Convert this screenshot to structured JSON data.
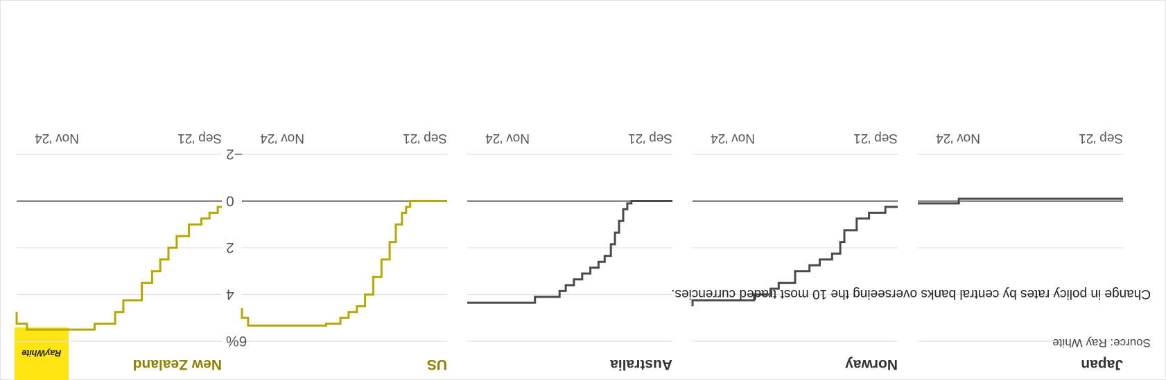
{
  "subtitle": "Change in policy rates by central banks overseeing the 10 most traded currencies.",
  "source": "Source: Ray White",
  "logo_text": "RayWhite",
  "colors": {
    "highlight": "#B5A800",
    "highlight_title": "#8F8200",
    "default_line": "#4a4a4a",
    "zero_line": "#222222",
    "grid": "#e2e2e2",
    "axis_text": "#555555",
    "logo_bg": "#FFE512"
  },
  "chart_data": {
    "type": "line",
    "layout": "small-multiples",
    "line_shape": "step",
    "x_range": [
      "Sep '21",
      "Nov '24"
    ],
    "x_tick_labels": [
      "Sep '21",
      "Nov '24"
    ],
    "y_range": [
      -2,
      6
    ],
    "y_ticks": [
      -2,
      0,
      2,
      4,
      6
    ],
    "y_tick_labels": [
      "−2",
      "0",
      "2",
      "4",
      "6%"
    ],
    "grid": true,
    "panels": [
      {
        "title": "New Zealand",
        "highlight": true,
        "values": [
          [
            0.0,
            0.25
          ],
          [
            0.02,
            0.5
          ],
          [
            0.06,
            0.75
          ],
          [
            0.1,
            1.0
          ],
          [
            0.16,
            1.5
          ],
          [
            0.22,
            2.0
          ],
          [
            0.26,
            2.5
          ],
          [
            0.3,
            3.0
          ],
          [
            0.34,
            3.5
          ],
          [
            0.39,
            4.25
          ],
          [
            0.48,
            4.75
          ],
          [
            0.52,
            5.25
          ],
          [
            0.62,
            5.5
          ],
          [
            0.95,
            5.5
          ],
          [
            0.95,
            5.25
          ],
          [
            1.0,
            4.75
          ]
        ]
      },
      {
        "title": "US",
        "highlight": true,
        "values": [
          [
            0.0,
            0.0
          ],
          [
            0.16,
            0.0
          ],
          [
            0.18,
            0.25
          ],
          [
            0.2,
            0.5
          ],
          [
            0.22,
            1.0
          ],
          [
            0.25,
            1.75
          ],
          [
            0.28,
            2.5
          ],
          [
            0.32,
            3.25
          ],
          [
            0.36,
            4.0
          ],
          [
            0.4,
            4.5
          ],
          [
            0.44,
            4.75
          ],
          [
            0.48,
            5.0
          ],
          [
            0.52,
            5.25
          ],
          [
            0.59,
            5.33
          ],
          [
            0.95,
            5.33
          ],
          [
            0.97,
            5.0
          ],
          [
            1.0,
            4.58
          ]
        ]
      },
      {
        "title": "Australia",
        "highlight": false,
        "values": [
          [
            0.0,
            0.0
          ],
          [
            0.2,
            0.0
          ],
          [
            0.2,
            0.1
          ],
          [
            0.22,
            0.35
          ],
          [
            0.24,
            0.85
          ],
          [
            0.26,
            1.35
          ],
          [
            0.28,
            1.85
          ],
          [
            0.3,
            2.35
          ],
          [
            0.33,
            2.6
          ],
          [
            0.36,
            2.85
          ],
          [
            0.4,
            3.1
          ],
          [
            0.44,
            3.35
          ],
          [
            0.48,
            3.6
          ],
          [
            0.52,
            3.85
          ],
          [
            0.55,
            4.1
          ],
          [
            0.67,
            4.35
          ],
          [
            1.0,
            4.35
          ]
        ]
      },
      {
        "title": "Norway",
        "highlight": false,
        "values": [
          [
            0.0,
            0.25
          ],
          [
            0.06,
            0.5
          ],
          [
            0.14,
            0.75
          ],
          [
            0.2,
            1.25
          ],
          [
            0.26,
            1.75
          ],
          [
            0.28,
            2.25
          ],
          [
            0.32,
            2.5
          ],
          [
            0.38,
            2.75
          ],
          [
            0.43,
            3.0
          ],
          [
            0.5,
            3.5
          ],
          [
            0.58,
            3.75
          ],
          [
            0.62,
            4.0
          ],
          [
            0.7,
            4.25
          ],
          [
            1.0,
            4.5
          ]
        ]
      },
      {
        "title": "Japan",
        "highlight": false,
        "values": [
          [
            0.0,
            -0.1
          ],
          [
            0.8,
            -0.1
          ],
          [
            0.8,
            0.1
          ],
          [
            1.0,
            0.1
          ]
        ]
      }
    ]
  }
}
